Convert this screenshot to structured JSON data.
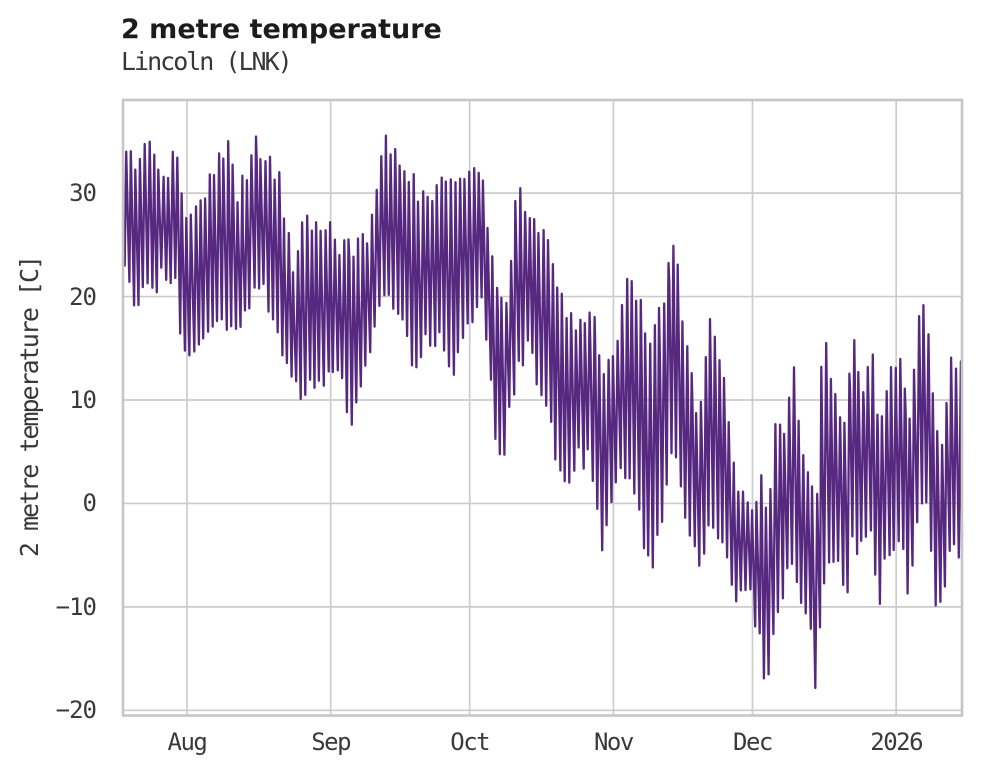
{
  "chart_data": {
    "type": "line",
    "title": "2 metre temperature",
    "subtitle": "Lincoln (LNK)",
    "ylabel": "2 metre temperature [C]",
    "xlabel": "",
    "grid": true,
    "legend": "none",
    "ylim": [
      -20.5,
      39
    ],
    "yticks": [
      30,
      20,
      10,
      0,
      -10,
      -20
    ],
    "xlim_days": [
      0,
      181
    ],
    "xticks": [
      {
        "label": "Aug",
        "day": 13.8
      },
      {
        "label": "Sep",
        "day": 44.8
      },
      {
        "label": "Oct",
        "day": 74.8
      },
      {
        "label": "Nov",
        "day": 105.8
      },
      {
        "label": "Dec",
        "day": 135.8
      },
      {
        "label": "2026",
        "day": 166.8
      }
    ],
    "line_color": "#56287f",
    "series": [
      {
        "name": "2 metre temperature",
        "sampling": "daily min/max envelope, day offset from left edge of plot",
        "days": [
          0,
          3,
          6,
          9,
          11,
          13.5,
          16,
          19,
          22.5,
          25,
          28,
          30.5,
          33.5,
          36.5,
          39,
          42,
          45,
          47,
          49.5,
          52,
          54.5,
          57,
          60,
          62.5,
          65,
          68,
          70.5,
          73,
          75,
          77.5,
          80.5,
          82.5,
          85,
          88,
          90.5,
          93,
          95.5,
          98,
          101,
          103.5,
          106,
          109,
          111.5,
          114,
          116.5,
          119,
          122,
          124.5,
          127,
          130,
          132.5,
          135.5,
          137.5,
          139,
          141,
          142.5,
          144.5,
          146,
          148,
          149.5,
          151,
          152.5,
          154.5,
          156,
          157.5,
          159.5,
          161.5,
          163,
          164.5,
          166.8,
          168.3,
          169.5,
          171.3,
          173.2,
          175.2,
          176.9,
          178.4,
          180,
          181
        ],
        "min": [
          22,
          19,
          21,
          22,
          22,
          12.8,
          14,
          18,
          18,
          17,
          20,
          21,
          16,
          12,
          11,
          11.5,
          13,
          12,
          7,
          13,
          18,
          20,
          17,
          13,
          15,
          16,
          12,
          17,
          18,
          21,
          5,
          6,
          14,
          15,
          10,
          6,
          2,
          5,
          4,
          -4,
          1,
          4,
          -2,
          -7,
          0,
          5,
          -3,
          -6.5,
          -2,
          -5,
          -9,
          -9,
          -14,
          -17,
          -10,
          -9,
          -5,
          -8,
          -12,
          -18,
          -8,
          -4,
          -6,
          -11.5,
          -3,
          -5,
          -2,
          -12,
          -5,
          -4,
          -4,
          -8.5,
          -2,
          0,
          -9.5,
          -9,
          -3,
          -5,
          -5.3
        ],
        "max": [
          33,
          33,
          34.5,
          30,
          36,
          28,
          29,
          32,
          34.5,
          29,
          35,
          33,
          32,
          23,
          27,
          26.5,
          26,
          25,
          25,
          25,
          30,
          35,
          33,
          31,
          29,
          31,
          30,
          31,
          32,
          31.5,
          20,
          18,
          30,
          28,
          27,
          22,
          19,
          16,
          19,
          12,
          15,
          22,
          20,
          15,
          20,
          25,
          14,
          8,
          18.5,
          10,
          2,
          0,
          2,
          -2,
          8,
          5,
          15.5,
          5,
          2,
          0,
          15.5,
          13,
          9,
          8,
          15.5,
          10,
          16,
          6,
          12,
          13.8,
          15,
          6,
          17,
          19,
          7,
          6,
          14,
          13,
          12.8
        ]
      }
    ]
  },
  "colors": {
    "line": "#56287f",
    "grid": "#cccccc",
    "spine": "#c6c6c6",
    "title_text": "#1c1c1c",
    "tick_text": "#3a3a3a",
    "background": "#ffffff"
  }
}
